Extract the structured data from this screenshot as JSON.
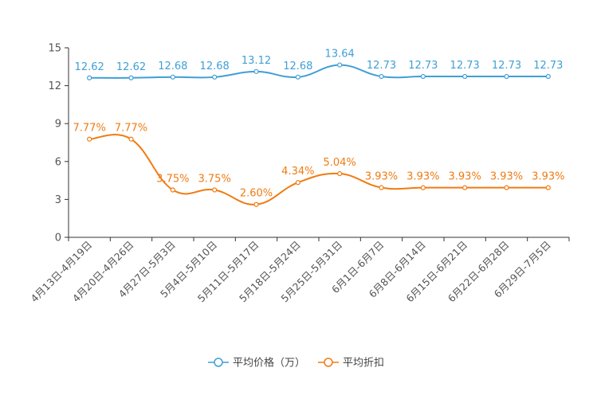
{
  "chart_data": {
    "type": "line",
    "title": "",
    "xlabel": "",
    "ylabel": "",
    "ylim": [
      0,
      15
    ],
    "yticks": [
      0,
      3,
      6,
      9,
      12,
      15
    ],
    "grid": false,
    "legend_position": "bottom-center",
    "categories": [
      "4月13日-4月19日",
      "4月20日-4月26日",
      "4月27日-5月3日",
      "5月4日-5月10日",
      "5月11日-5月17日",
      "5月18日-5月24日",
      "5月25日-5月31日",
      "6月1日-6月7日",
      "6月8日-6月14日",
      "6月15日-6月21日",
      "6月22日-6月28日",
      "6月29日-7月5日"
    ],
    "series": [
      {
        "name": "平均价格（万）",
        "color": "#3f9fd6",
        "values": [
          12.62,
          12.62,
          12.68,
          12.68,
          13.12,
          12.68,
          13.64,
          12.73,
          12.73,
          12.73,
          12.73,
          12.73
        ],
        "labels": [
          "12.62",
          "12.62",
          "12.68",
          "12.68",
          "13.12",
          "12.68",
          "13.64",
          "12.73",
          "12.73",
          "12.73",
          "12.73",
          "12.73"
        ]
      },
      {
        "name": "平均折扣",
        "color": "#f07b12",
        "values": [
          7.77,
          7.77,
          3.75,
          3.75,
          2.6,
          4.34,
          5.04,
          3.93,
          3.93,
          3.93,
          3.93,
          3.93
        ],
        "labels": [
          "7.77%",
          "7.77%",
          "3.75%",
          "3.75%",
          "2.60%",
          "4.34%",
          "5.04%",
          "3.93%",
          "3.93%",
          "3.93%",
          "3.93%",
          "3.93%"
        ]
      }
    ]
  }
}
